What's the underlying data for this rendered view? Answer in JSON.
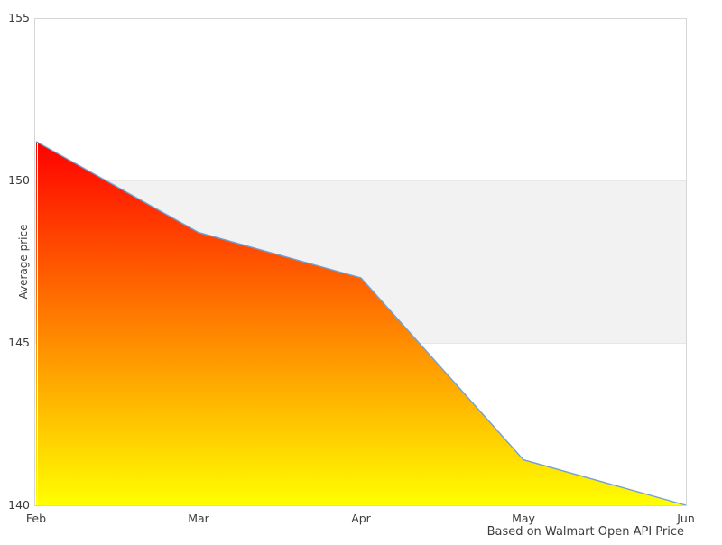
{
  "chart": {
    "y_axis_title": "Average price",
    "caption": "Based on Walmart Open API Price"
  },
  "chart_data": {
    "type": "area",
    "x": [
      "Feb",
      "Mar",
      "Apr",
      "May",
      "Jun"
    ],
    "values": [
      151.2,
      148.4,
      147.0,
      141.4,
      140.0
    ],
    "title": "",
    "xlabel": "",
    "ylabel": "Average price",
    "ylim": [
      140,
      155
    ],
    "y_ticks": [
      155,
      150,
      145,
      140
    ],
    "x_tick_labels": [
      "Feb",
      "Mar",
      "Apr",
      "May",
      "Jun"
    ],
    "band": {
      "from": 145,
      "to": 150,
      "color": "#f2f2f2",
      "edge_color": "#e7e7e7"
    },
    "area_gradient_top": "#ff0000",
    "area_gradient_bottom": "#ffff00",
    "line_color": "#72a0d5",
    "plot_border_color": "#d6d6d6",
    "text_color": "#3c3c3c",
    "grid": "off",
    "legend": "none",
    "caption": "Based on Walmart Open API Price"
  }
}
